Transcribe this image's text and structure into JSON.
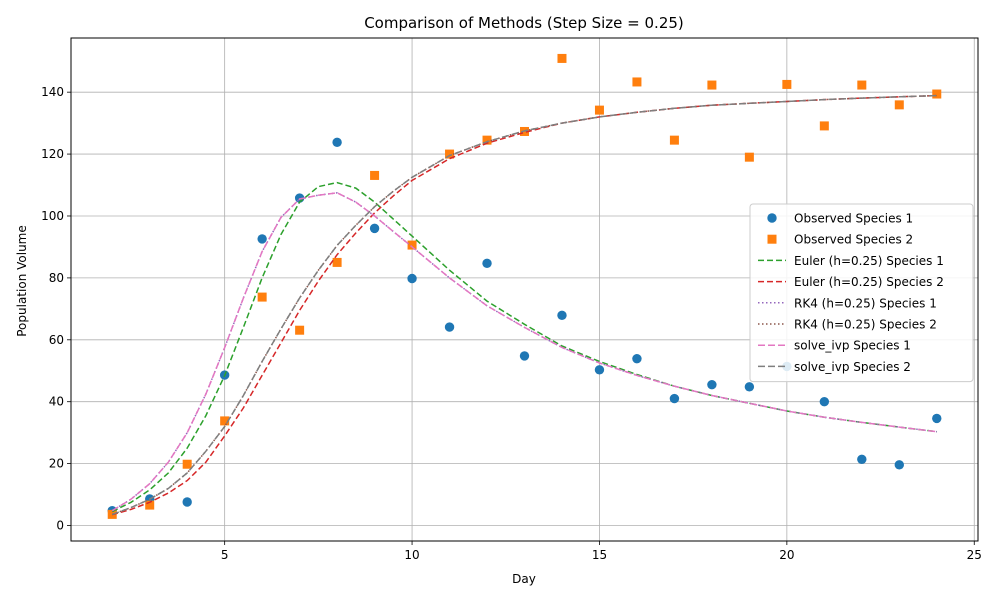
{
  "chart_data": {
    "type": "line",
    "title": "Comparison of Methods (Step Size = 0.25)",
    "xlabel": "Day",
    "ylabel": "Population Volume",
    "xlim": [
      0.9,
      25.1
    ],
    "ylim": [
      -5,
      157.5
    ],
    "xticks": [
      5,
      10,
      15,
      20,
      25
    ],
    "yticks": [
      0,
      20,
      40,
      60,
      80,
      100,
      120,
      140
    ],
    "grid": true,
    "legend_position": "center-right",
    "series": [
      {
        "name": "Observed Species 1",
        "kind": "scatter",
        "marker": "circle",
        "color": "#1f77b4",
        "x": [
          2,
          3,
          4,
          5,
          6,
          7,
          8,
          9,
          10,
          11,
          12,
          13,
          14,
          15,
          16,
          17,
          18,
          19,
          20,
          21,
          22,
          23,
          24
        ],
        "y": [
          4.8,
          8.6,
          7.6,
          48.6,
          92.6,
          105.8,
          123.8,
          96.0,
          79.8,
          64.1,
          84.7,
          54.8,
          67.9,
          50.3,
          53.9,
          41.0,
          45.5,
          44.8,
          51.4,
          40.0,
          21.4,
          19.6,
          34.6
        ]
      },
      {
        "name": "Observed Species 2",
        "kind": "scatter",
        "marker": "square",
        "color": "#ff7f0e",
        "x": [
          2,
          3,
          4,
          5,
          6,
          7,
          8,
          9,
          10,
          11,
          12,
          13,
          14,
          15,
          16,
          17,
          18,
          19,
          20,
          21,
          22,
          23,
          24
        ],
        "y": [
          3.6,
          6.6,
          19.8,
          33.8,
          73.8,
          63.1,
          85.0,
          113.1,
          90.6,
          120.0,
          124.5,
          127.3,
          150.9,
          134.2,
          143.3,
          124.5,
          142.3,
          119.0,
          142.5,
          129.1,
          142.3,
          135.9,
          139.4
        ]
      },
      {
        "name": "Euler (h=0.25) Species 1",
        "kind": "line",
        "dash": "dashed",
        "color": "#2ca02c",
        "x": [
          2,
          2.5,
          3,
          3.5,
          4,
          4.5,
          5,
          5.5,
          6,
          6.5,
          7,
          7.5,
          8,
          8.5,
          9,
          9.5,
          10,
          11,
          12,
          13,
          14,
          15,
          16,
          17,
          18,
          19,
          20,
          21,
          22,
          23,
          24
        ],
        "y": [
          4.5,
          7.5,
          11.5,
          17.0,
          25.0,
          35.5,
          48.5,
          64.0,
          80.0,
          94.0,
          104.5,
          109.5,
          110.8,
          109.0,
          104.5,
          99.0,
          93.5,
          82.5,
          72.5,
          65.0,
          58.0,
          53.0,
          48.8,
          45.0,
          42.0,
          39.5,
          37.0,
          35.0,
          33.3,
          31.8,
          30.3
        ]
      },
      {
        "name": "Euler (h=0.25) Species 2",
        "kind": "line",
        "dash": "dashed",
        "color": "#d62728",
        "x": [
          2,
          2.5,
          3,
          3.5,
          4,
          4.5,
          5,
          5.5,
          6,
          6.5,
          7,
          7.5,
          8,
          8.5,
          9,
          9.5,
          10,
          11,
          12,
          13,
          14,
          15,
          16,
          17,
          18,
          19,
          20,
          21,
          22,
          23,
          24
        ],
        "y": [
          3.5,
          5.2,
          7.5,
          10.5,
          14.5,
          20.5,
          29.0,
          38.0,
          48.5,
          59.0,
          69.5,
          79.0,
          87.5,
          94.5,
          101.0,
          106.5,
          111.5,
          118.5,
          123.5,
          127.0,
          130.0,
          132.0,
          133.5,
          134.8,
          135.8,
          136.4,
          137.0,
          137.6,
          138.1,
          138.5,
          138.9
        ]
      },
      {
        "name": "RK4 (h=0.25) Species 1",
        "kind": "line",
        "dash": "dotted",
        "color": "#9467bd",
        "x": [
          2,
          2.5,
          3,
          3.5,
          4,
          4.5,
          5,
          5.5,
          6,
          6.5,
          7,
          7.5,
          8,
          8.5,
          9,
          9.5,
          10,
          11,
          12,
          13,
          14,
          15,
          16,
          17,
          18,
          19,
          20,
          21,
          22,
          23,
          24
        ],
        "y": [
          4.8,
          8.5,
          13.5,
          20.5,
          30.0,
          42.5,
          57.5,
          73.5,
          88.5,
          99.5,
          105.5,
          106.7,
          107.5,
          104.5,
          100.0,
          95.0,
          90.0,
          80.0,
          71.0,
          64.0,
          57.5,
          52.5,
          48.5,
          45.0,
          42.0,
          39.5,
          37.0,
          35.0,
          33.3,
          31.8,
          30.3
        ]
      },
      {
        "name": "RK4 (h=0.25) Species 2",
        "kind": "line",
        "dash": "dotted",
        "color": "#8c564b",
        "x": [
          2,
          2.5,
          3,
          3.5,
          4,
          4.5,
          5,
          5.5,
          6,
          6.5,
          7,
          7.5,
          8,
          8.5,
          9,
          9.5,
          10,
          11,
          12,
          13,
          14,
          15,
          16,
          17,
          18,
          19,
          20,
          21,
          22,
          23,
          24
        ],
        "y": [
          3.6,
          5.8,
          8.5,
          12.0,
          17.0,
          24.0,
          32.0,
          42.0,
          53.0,
          63.5,
          73.5,
          82.5,
          90.5,
          97.0,
          103.0,
          108.0,
          112.5,
          119.5,
          124.0,
          127.5,
          130.0,
          132.0,
          133.5,
          134.8,
          135.8,
          136.4,
          137.0,
          137.6,
          138.1,
          138.5,
          138.9
        ]
      },
      {
        "name": "solve_ivp Species 1",
        "kind": "line",
        "dash": "long-dashed",
        "color": "#e377c2",
        "x": [
          2,
          2.5,
          3,
          3.5,
          4,
          4.5,
          5,
          5.5,
          6,
          6.5,
          7,
          7.5,
          8,
          8.5,
          9,
          9.5,
          10,
          11,
          12,
          13,
          14,
          15,
          16,
          17,
          18,
          19,
          20,
          21,
          22,
          23,
          24
        ],
        "y": [
          4.8,
          8.5,
          13.5,
          20.5,
          30.0,
          42.5,
          57.5,
          73.5,
          88.5,
          99.5,
          105.5,
          106.7,
          107.5,
          104.5,
          100.0,
          95.0,
          90.0,
          80.0,
          71.0,
          64.0,
          57.5,
          52.5,
          48.5,
          45.0,
          42.0,
          39.5,
          37.0,
          35.0,
          33.3,
          31.8,
          30.3
        ]
      },
      {
        "name": "solve_ivp Species 2",
        "kind": "line",
        "dash": "long-dashed",
        "color": "#7f7f7f",
        "x": [
          2,
          2.5,
          3,
          3.5,
          4,
          4.5,
          5,
          5.5,
          6,
          6.5,
          7,
          7.5,
          8,
          8.5,
          9,
          9.5,
          10,
          11,
          12,
          13,
          14,
          15,
          16,
          17,
          18,
          19,
          20,
          21,
          22,
          23,
          24
        ],
        "y": [
          3.6,
          5.8,
          8.5,
          12.0,
          17.0,
          24.0,
          32.0,
          42.0,
          53.0,
          63.5,
          73.5,
          82.5,
          90.5,
          97.0,
          103.0,
          108.0,
          112.5,
          119.5,
          124.0,
          127.5,
          130.0,
          132.0,
          133.5,
          134.8,
          135.8,
          136.4,
          137.0,
          137.6,
          138.1,
          138.5,
          138.9
        ]
      }
    ]
  }
}
